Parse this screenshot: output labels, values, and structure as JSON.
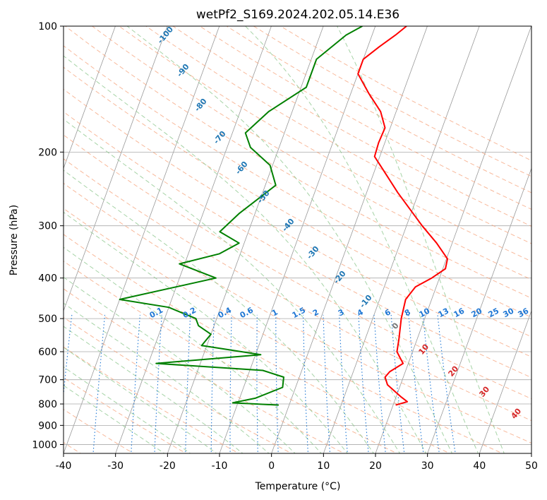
{
  "chart_data": {
    "type": "line",
    "title": "wetPf2_S169.2024.202.05.14.E36",
    "xlabel": "Temperature (°C)",
    "ylabel": "Pressure (hPa)",
    "xlim": [
      -40,
      50
    ],
    "ylim": [
      1050,
      100
    ],
    "y_scale": "log",
    "x_ticks": [
      -40,
      -30,
      -20,
      -10,
      0,
      10,
      20,
      30,
      40,
      50
    ],
    "y_ticks": [
      1000,
      900,
      800,
      700,
      600,
      500,
      400,
      300,
      200,
      100
    ],
    "grid": true,
    "series": [
      {
        "role": "temperature",
        "color": "#ff0000",
        "points": [
          {
            "p": 805,
            "t": 20.5
          },
          {
            "p": 790,
            "t": 22.5
          },
          {
            "p": 770,
            "t": 21.0
          },
          {
            "p": 720,
            "t": 17.5
          },
          {
            "p": 690,
            "t": 16.5
          },
          {
            "p": 670,
            "t": 17.0
          },
          {
            "p": 640,
            "t": 19.0
          },
          {
            "p": 620,
            "t": 18.0
          },
          {
            "p": 600,
            "t": 17.0
          },
          {
            "p": 560,
            "t": 16.5
          },
          {
            "p": 500,
            "t": 15.5
          },
          {
            "p": 450,
            "t": 15.0
          },
          {
            "p": 420,
            "t": 16.0
          },
          {
            "p": 400,
            "t": 18.5
          },
          {
            "p": 380,
            "t": 20.5
          },
          {
            "p": 360,
            "t": 20.2
          },
          {
            "p": 330,
            "t": 17.0
          },
          {
            "p": 300,
            "t": 13.0
          },
          {
            "p": 250,
            "t": 6.0
          },
          {
            "p": 220,
            "t": 1.5
          },
          {
            "p": 205,
            "t": -1.0
          },
          {
            "p": 190,
            "t": -1.2
          },
          {
            "p": 175,
            "t": -1.0
          },
          {
            "p": 160,
            "t": -3.0
          },
          {
            "p": 145,
            "t": -6.5
          },
          {
            "p": 130,
            "t": -10.0
          },
          {
            "p": 120,
            "t": -10.0
          },
          {
            "p": 112,
            "t": -7.8
          },
          {
            "p": 105,
            "t": -5.5
          },
          {
            "p": 100,
            "t": -4.0
          }
        ]
      },
      {
        "role": "dewpoint",
        "color": "#008000",
        "points": [
          {
            "p": 805,
            "t": -2.0
          },
          {
            "p": 795,
            "t": -11.0
          },
          {
            "p": 775,
            "t": -7.0
          },
          {
            "p": 730,
            "t": -2.5
          },
          {
            "p": 690,
            "t": -3.0
          },
          {
            "p": 665,
            "t": -7.5
          },
          {
            "p": 640,
            "t": -28.5
          },
          {
            "p": 610,
            "t": -9.0
          },
          {
            "p": 580,
            "t": -21.0
          },
          {
            "p": 545,
            "t": -20.0
          },
          {
            "p": 520,
            "t": -23.0
          },
          {
            "p": 500,
            "t": -24.0
          },
          {
            "p": 470,
            "t": -30.0
          },
          {
            "p": 450,
            "t": -40.0
          },
          {
            "p": 420,
            "t": -30.0
          },
          {
            "p": 400,
            "t": -23.0
          },
          {
            "p": 370,
            "t": -31.0
          },
          {
            "p": 350,
            "t": -24.0
          },
          {
            "p": 330,
            "t": -21.0
          },
          {
            "p": 310,
            "t": -25.5
          },
          {
            "p": 280,
            "t": -23.0
          },
          {
            "p": 240,
            "t": -18.0
          },
          {
            "p": 215,
            "t": -20.5
          },
          {
            "p": 195,
            "t": -25.5
          },
          {
            "p": 180,
            "t": -27.5
          },
          {
            "p": 160,
            "t": -24.5
          },
          {
            "p": 140,
            "t": -19.0
          },
          {
            "p": 120,
            "t": -19.0
          },
          {
            "p": 105,
            "t": -15.0
          },
          {
            "p": 100,
            "t": -12.5
          }
        ]
      }
    ],
    "dry_adiabat_labels": [
      "-100",
      "-90",
      "-80",
      "-70",
      "-60",
      "-50",
      "-40",
      "-30",
      "-20",
      "-10",
      "0",
      "10",
      "20",
      "30",
      "40"
    ],
    "mixing_ratio_labels": [
      "0.1",
      "0.2",
      "0.4",
      "0.6",
      "1",
      "1.5",
      "2",
      "3",
      "4",
      "6",
      "8",
      "10",
      "13",
      "16",
      "20",
      "25",
      "30",
      "36"
    ],
    "colors": {
      "isotherm": "#999999",
      "isobar": "#aaaaaa",
      "dry_adiabat": "#f5a27a",
      "moist_adiabat": "#90c890",
      "mixing_ratio": "#1f77d4",
      "dry_adiabat_label_cold": "#1f77b4",
      "dry_adiabat_label_warm": "#d62728"
    }
  }
}
